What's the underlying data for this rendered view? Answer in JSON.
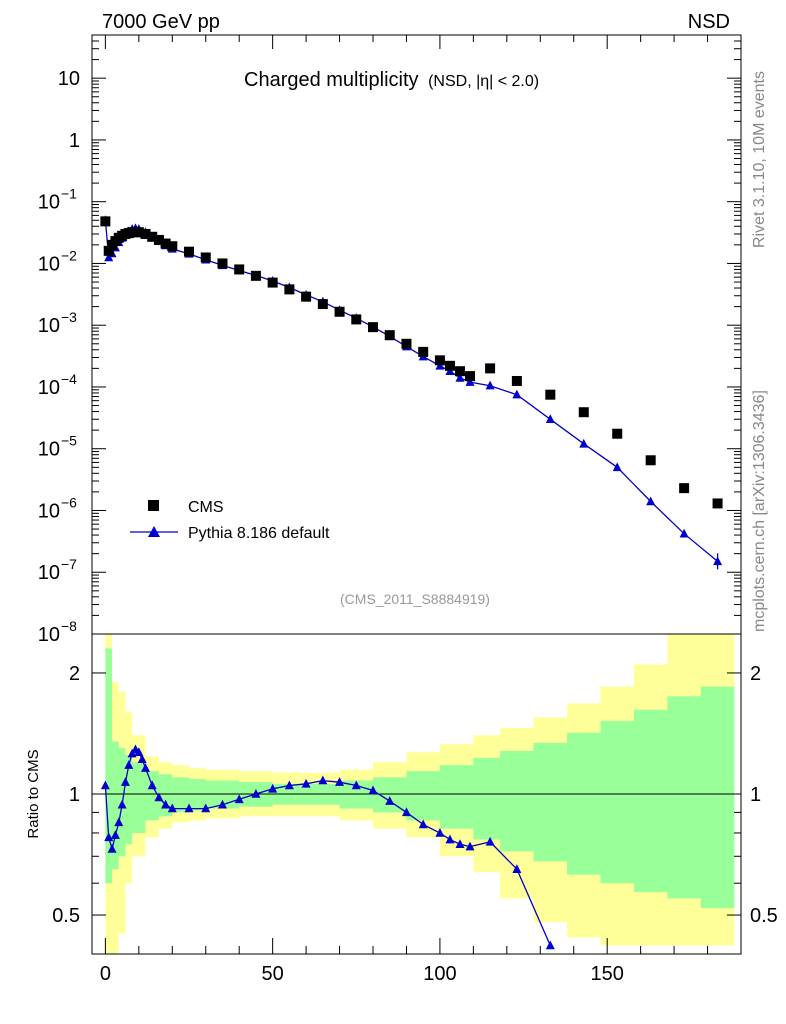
{
  "header": {
    "left": "7000 GeV pp",
    "right": "NSD"
  },
  "chart_title": {
    "main": "Charged multiplicity",
    "sub": "(NSD, |η| < 2.0)"
  },
  "side_labels": {
    "rivet": "Rivet 3.1.10,  10M events",
    "mcplots": "mcplots.cern.ch [arXiv:1306.3436]"
  },
  "analysis_label": "(CMS_2011_S8884919)",
  "legend": {
    "data": "CMS",
    "mc": "Pythia 8.186 default"
  },
  "colors": {
    "data": "#000000",
    "mc": "#0000cc",
    "band_inner": "#99ff99",
    "band_outer": "#ffff99"
  },
  "chart_data": [
    {
      "type": "scatter",
      "name": "main",
      "title": "Charged multiplicity (NSD, |η| < 2.0)",
      "xlabel": "",
      "ylabel": "",
      "yscale": "log",
      "xlim": [
        -4,
        190
      ],
      "ylim": [
        1e-08,
        50
      ],
      "y_tick_labels": [
        "10^-8",
        "10^-7",
        "10^-6",
        "10^-5",
        "10^-4",
        "10^-3",
        "10^-2",
        "10^-1",
        "1",
        "10"
      ],
      "series": [
        {
          "name": "CMS",
          "marker": "square",
          "x": [
            0,
            1,
            2,
            3,
            4,
            5,
            6,
            7,
            8,
            9,
            10,
            12,
            14,
            16,
            18,
            20,
            25,
            30,
            35,
            40,
            45,
            50,
            55,
            60,
            65,
            70,
            75,
            80,
            85,
            90,
            95,
            100,
            103,
            106,
            109,
            115,
            123,
            133,
            143,
            153,
            163,
            173,
            183
          ],
          "y": [
            0.048,
            0.016,
            0.02,
            0.023,
            0.026,
            0.028,
            0.03,
            0.031,
            0.032,
            0.032,
            0.032,
            0.03,
            0.027,
            0.024,
            0.021,
            0.019,
            0.0155,
            0.0125,
            0.01,
            0.008,
            0.0063,
            0.0049,
            0.0038,
            0.0029,
            0.0022,
            0.00165,
            0.00124,
            0.00093,
            0.00069,
            0.0005,
            0.00037,
            0.00027,
            0.00022,
            0.00018,
            0.00015,
            0.0002,
            0.000125,
            7.5e-05,
            3.9e-05,
            1.75e-05,
            6.5e-06,
            2.3e-06,
            1.3e-06
          ]
        },
        {
          "name": "Pythia 8.186 default",
          "marker": "triangle",
          "x": [
            0,
            1,
            2,
            3,
            4,
            5,
            6,
            7,
            8,
            9,
            10,
            12,
            14,
            16,
            18,
            20,
            25,
            30,
            35,
            40,
            45,
            50,
            55,
            60,
            65,
            70,
            75,
            80,
            85,
            90,
            95,
            100,
            103,
            106,
            109,
            115,
            123,
            133,
            143,
            153,
            163,
            173,
            183
          ],
          "y": [
            0.05,
            0.0125,
            0.0145,
            0.018,
            0.022,
            0.026,
            0.03,
            0.033,
            0.036,
            0.037,
            0.036,
            0.032,
            0.027,
            0.023,
            0.0195,
            0.0172,
            0.0143,
            0.0115,
            0.0093,
            0.0077,
            0.0064,
            0.0052,
            0.0041,
            0.0031,
            0.0024,
            0.00175,
            0.0013,
            0.00094,
            0.00066,
            0.00045,
            0.00031,
            0.00022,
            0.00018,
            0.00014,
            0.00012,
            0.000105,
            7.5e-05,
            3e-05,
            1.2e-05,
            5e-06,
            1.4e-06,
            4.2e-07,
            1.5e-07
          ]
        }
      ]
    },
    {
      "type": "line",
      "name": "ratio",
      "xlabel": "",
      "ylabel": "Ratio to CMS",
      "yscale": "log",
      "ylim": [
        0.4,
        2.5
      ],
      "xlim": [
        -4,
        190
      ],
      "x_ticks": [
        0,
        50,
        100,
        150
      ],
      "y_ticks": [
        0.5,
        1,
        2
      ],
      "reference_line": 1,
      "bands": {
        "x": [
          0,
          2,
          4,
          6,
          8,
          12,
          16,
          20,
          25,
          30,
          40,
          50,
          60,
          70,
          80,
          90,
          100,
          110,
          118,
          128,
          138,
          148,
          158,
          168,
          178,
          188
        ],
        "inner_lo": [
          0.6,
          0.65,
          0.7,
          0.75,
          0.8,
          0.86,
          0.88,
          0.9,
          0.91,
          0.92,
          0.93,
          0.94,
          0.94,
          0.92,
          0.9,
          0.86,
          0.82,
          0.77,
          0.72,
          0.68,
          0.63,
          0.6,
          0.57,
          0.55,
          0.52,
          0.5
        ],
        "inner_hi": [
          2.3,
          1.35,
          1.3,
          1.25,
          1.2,
          1.14,
          1.12,
          1.1,
          1.09,
          1.08,
          1.07,
          1.06,
          1.06,
          1.08,
          1.1,
          1.14,
          1.18,
          1.23,
          1.28,
          1.34,
          1.42,
          1.52,
          1.62,
          1.75,
          1.85,
          1.9
        ],
        "outer_lo": [
          0.3,
          0.35,
          0.45,
          0.6,
          0.7,
          0.78,
          0.82,
          0.85,
          0.86,
          0.87,
          0.88,
          0.88,
          0.88,
          0.86,
          0.82,
          0.78,
          0.7,
          0.64,
          0.55,
          0.48,
          0.44,
          0.42,
          0.42,
          0.42,
          0.42,
          0.42
        ],
        "outer_hi": [
          3,
          1.9,
          1.8,
          1.6,
          1.4,
          1.24,
          1.2,
          1.18,
          1.16,
          1.15,
          1.14,
          1.13,
          1.13,
          1.15,
          1.2,
          1.27,
          1.33,
          1.4,
          1.46,
          1.55,
          1.68,
          1.85,
          2.1,
          2.5,
          3,
          3
        ]
      },
      "series": [
        {
          "name": "Pythia 8.186 default / CMS",
          "marker": "triangle",
          "x": [
            0,
            1,
            2,
            3,
            4,
            5,
            6,
            7,
            8,
            9,
            10,
            11,
            12,
            14,
            16,
            18,
            20,
            25,
            30,
            35,
            40,
            45,
            50,
            55,
            60,
            65,
            70,
            75,
            80,
            85,
            90,
            95,
            100,
            103,
            106,
            109,
            115,
            123,
            133
          ],
          "y": [
            1.05,
            0.78,
            0.73,
            0.79,
            0.85,
            0.94,
            1.07,
            1.18,
            1.26,
            1.29,
            1.27,
            1.22,
            1.16,
            1.05,
            0.98,
            0.94,
            0.92,
            0.92,
            0.92,
            0.94,
            0.97,
            1.0,
            1.03,
            1.05,
            1.06,
            1.08,
            1.07,
            1.05,
            1.02,
            0.96,
            0.9,
            0.84,
            0.8,
            0.77,
            0.75,
            0.74,
            0.76,
            0.65,
            0.42
          ]
        }
      ]
    }
  ]
}
